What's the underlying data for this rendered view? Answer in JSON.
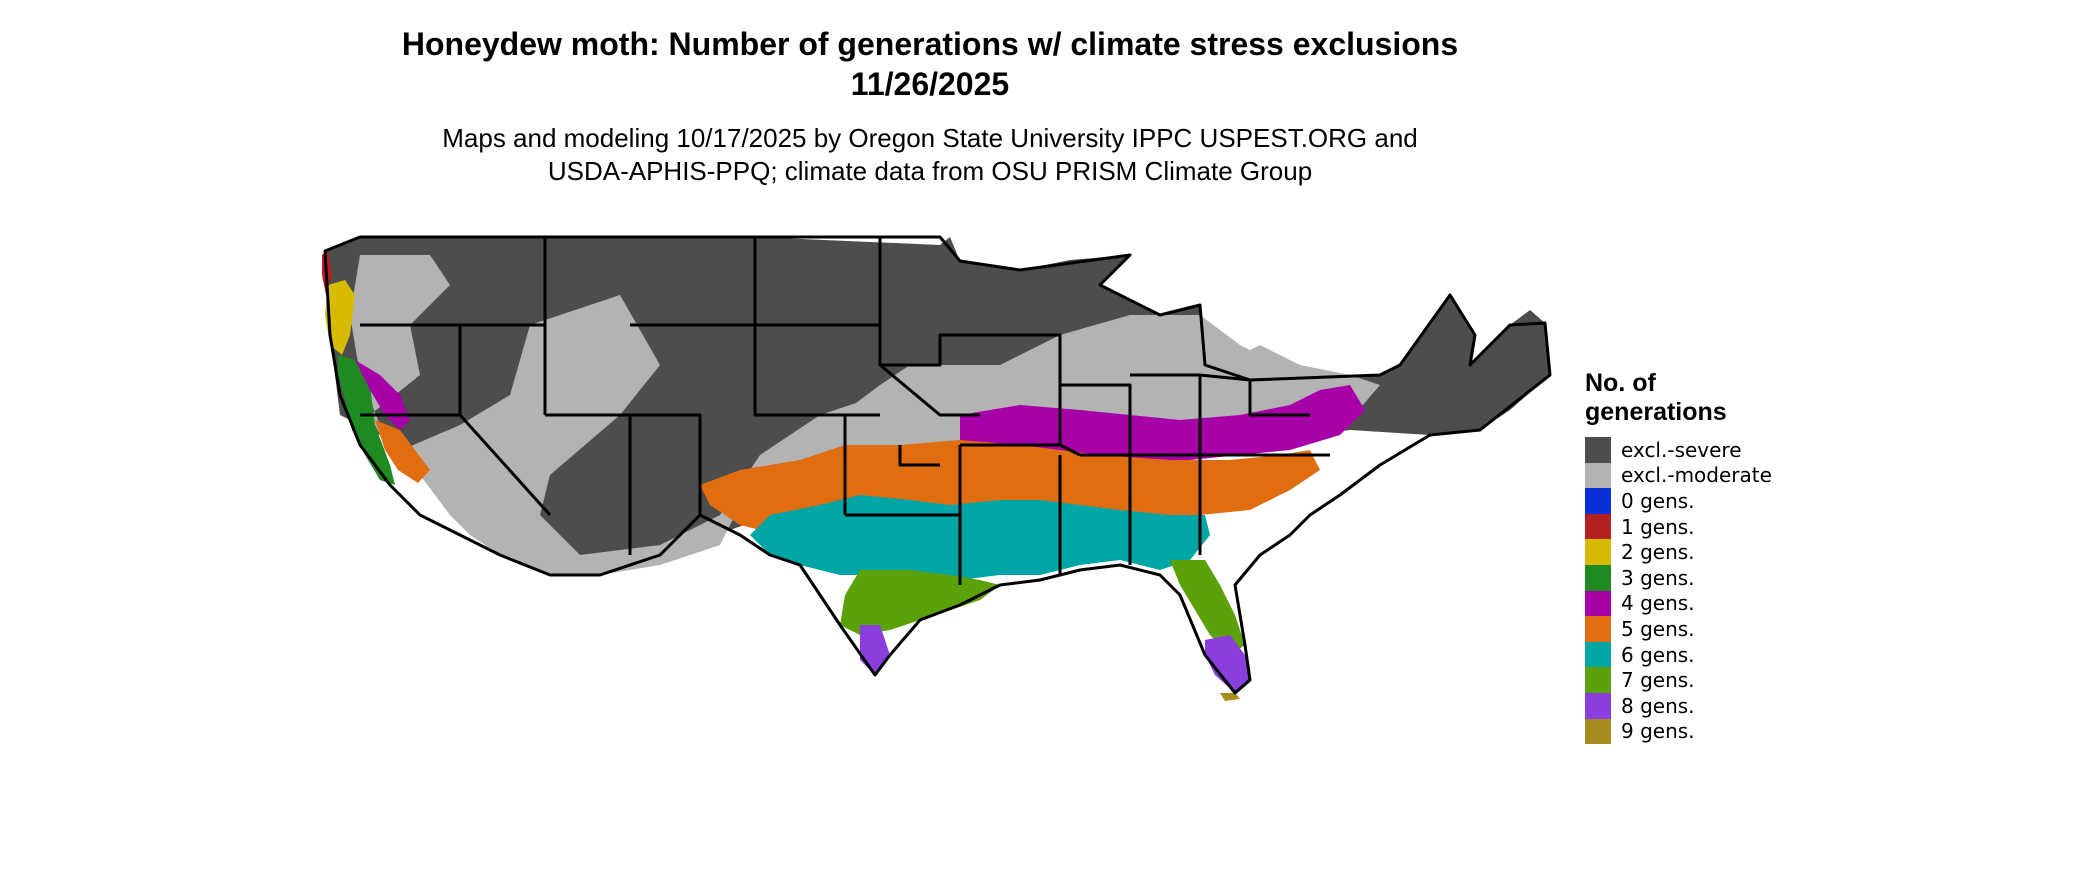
{
  "title_line1": "Honeydew moth: Number of generations w/ climate stress exclusions",
  "title_line2": "11/26/2025",
  "subtitle_line1": "Maps and modeling 10/17/2025 by Oregon State University IPPC USPEST.ORG and",
  "subtitle_line2": "USDA-APHIS-PPQ; climate data from OSU PRISM Climate Group",
  "legend": {
    "title_line1": "No. of",
    "title_line2": "generations",
    "items": [
      {
        "label": "excl.-severe",
        "color": "#4d4d4d"
      },
      {
        "label": "excl.-moderate",
        "color": "#b3b3b3"
      },
      {
        "label": "0 gens.",
        "color": "#0a2fd6"
      },
      {
        "label": "1 gens.",
        "color": "#b22020"
      },
      {
        "label": "2 gens.",
        "color": "#d6bb00"
      },
      {
        "label": "3 gens.",
        "color": "#1f8a22"
      },
      {
        "label": "4 gens.",
        "color": "#a800a8"
      },
      {
        "label": "5 gens.",
        "color": "#e06d10"
      },
      {
        "label": "6 gens.",
        "color": "#00a6a6"
      },
      {
        "label": "7 gens.",
        "color": "#5aa10a"
      },
      {
        "label": "8 gens.",
        "color": "#8a3fdc"
      },
      {
        "label": "9 gens.",
        "color": "#a88c1f"
      }
    ]
  }
}
